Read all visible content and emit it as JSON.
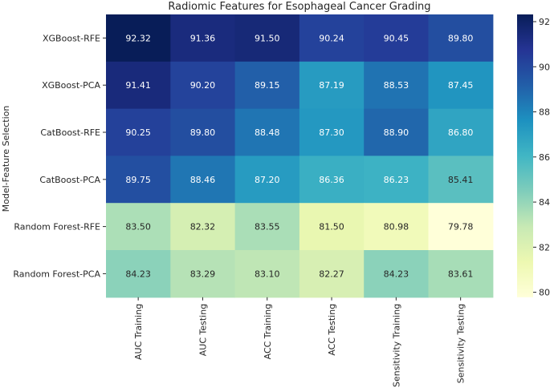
{
  "chart_data": {
    "type": "heatmap",
    "title": "Radiomic Features for Esophageal Cancer Grading",
    "xlabel": "",
    "ylabel": "Model-Feature Selection",
    "rows": [
      "XGBoost-RFE",
      "XGBoost-PCA",
      "CatBoost-RFE",
      "CatBoost-PCA",
      "Random Forest-RFE",
      "Random Forest-PCA"
    ],
    "columns": [
      "AUC Training",
      "AUC Testing",
      "ACC Training",
      "ACC Testing",
      "Sensitivity Training",
      "Sensitivity Testing"
    ],
    "values": [
      [
        92.32,
        91.36,
        91.5,
        90.24,
        90.45,
        89.8
      ],
      [
        91.41,
        90.2,
        89.15,
        87.19,
        88.53,
        87.45
      ],
      [
        90.25,
        89.8,
        88.48,
        87.3,
        88.9,
        86.8
      ],
      [
        89.75,
        88.46,
        87.2,
        86.36,
        86.23,
        85.41
      ],
      [
        83.5,
        82.32,
        83.55,
        81.5,
        80.98,
        79.78
      ],
      [
        84.23,
        83.29,
        83.1,
        82.27,
        84.23,
        83.61
      ]
    ],
    "cell_labels": [
      [
        "92.32",
        "91.36",
        "91.50",
        "90.24",
        "90.45",
        "89.80"
      ],
      [
        "91.41",
        "90.20",
        "89.15",
        "87.19",
        "88.53",
        "87.45"
      ],
      [
        "90.25",
        "89.80",
        "88.48",
        "87.30",
        "88.90",
        "86.80"
      ],
      [
        "89.75",
        "88.46",
        "87.20",
        "86.36",
        "86.23",
        "85.41"
      ],
      [
        "83.50",
        "82.32",
        "83.55",
        "81.50",
        "80.98",
        "79.78"
      ],
      [
        "84.23",
        "83.29",
        "83.10",
        "82.27",
        "84.23",
        "83.61"
      ]
    ],
    "vmin": 79.78,
    "vmax": 92.32,
    "colormap": "YlGnBu",
    "colormap_stops": [
      "#ffffd9",
      "#edf8b1",
      "#c7e9b4",
      "#7fcdbb",
      "#41b6c4",
      "#1d91c0",
      "#225ea8",
      "#253494",
      "#081d58"
    ],
    "colorbar_ticks": [
      "80",
      "82",
      "84",
      "86",
      "88",
      "90",
      "92"
    ],
    "text_color_dark": "#262626",
    "text_color_light": "#ffffff"
  }
}
